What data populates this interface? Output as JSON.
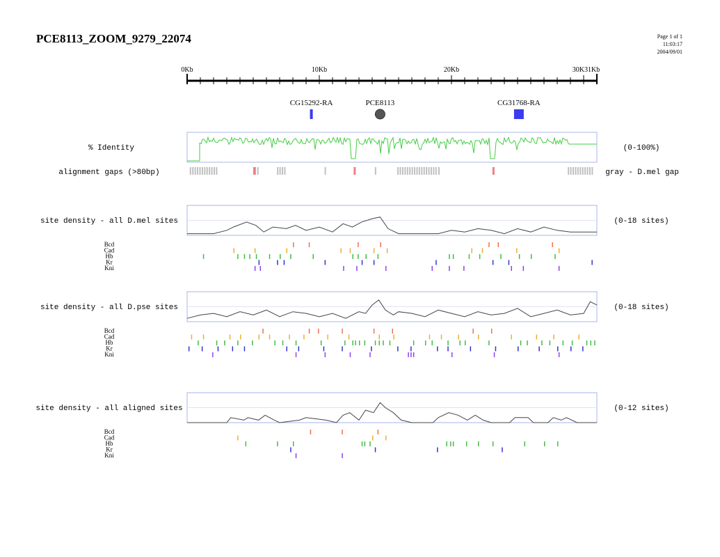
{
  "header": {
    "title": "PCE8113_ZOOM_9279_22074",
    "page": "Page 1 of 1",
    "time": "11:03:17",
    "date": "2004/09/01"
  },
  "ruler": {
    "max_kb": 31,
    "labels": [
      {
        "kb": 0,
        "text": "0Kb"
      },
      {
        "kb": 10,
        "text": "10Kb"
      },
      {
        "kb": 20,
        "text": "20Kb"
      },
      {
        "kb": 30,
        "text": "30K"
      },
      {
        "kb": 31,
        "text": "31Kb"
      }
    ]
  },
  "features": [
    {
      "label": "CG15292-RA",
      "kb": 9.4,
      "shape": "bar",
      "color": "#3b3bef"
    },
    {
      "label": "PCE8113",
      "kb": 14.6,
      "shape": "circle",
      "color": "#555555"
    },
    {
      "label": "CG31768-RA",
      "kb": 25.1,
      "shape": "square",
      "color": "#3b3bef"
    }
  ],
  "colors": {
    "identity": "#44cc44",
    "density": "#444444",
    "gray_gap": "#c0c0c0",
    "pink_gap": "#f08080",
    "Bcd": "#f07050",
    "Cad": "#e8b030",
    "Hb": "#44bb44",
    "Kr": "#3333cc",
    "Kni": "#8844ee",
    "frame": "#a8b4e8"
  },
  "identity": {
    "label": "% Identity",
    "range": "(0-100%)"
  },
  "gaps": {
    "label": "alignment gaps (>80bp)",
    "legend": "gray - D.mel gap",
    "gray": [
      [
        0.2,
        2.3
      ],
      [
        5.3,
        5.4
      ],
      [
        6.8,
        7.4
      ],
      [
        10.4,
        10.5
      ],
      [
        14.2,
        14.3
      ],
      [
        15.9,
        18.8
      ],
      [
        19.0,
        19.1
      ],
      [
        28.8,
        30.7
      ]
    ],
    "pink": [
      [
        5.0,
        5.2
      ],
      [
        12.6,
        12.7
      ],
      [
        23.1,
        23.2
      ]
    ]
  },
  "tracks": [
    {
      "label": "site density - all D.mel sites",
      "range": "(0-18 sites)",
      "max": 18,
      "series_names": [
        "Bcd",
        "Cad",
        "Hb",
        "Kr",
        "Kni"
      ],
      "chart_data": {
        "type": "line",
        "x_unit": "Kb",
        "ylim": [
          0,
          18
        ],
        "x": [
          0,
          2,
          3,
          3.5,
          4.5,
          5.2,
          5.8,
          6.5,
          7.5,
          8.2,
          9.0,
          10,
          11,
          11.8,
          12.5,
          13.2,
          14,
          14.6,
          15.2,
          16,
          17,
          19,
          20,
          21,
          22,
          23,
          24,
          25,
          26,
          27,
          28,
          29,
          30,
          31
        ],
        "y": [
          1,
          1,
          3,
          5,
          8,
          6,
          2,
          5,
          4,
          6,
          3,
          5,
          2,
          7,
          5,
          8,
          10,
          11,
          4,
          1,
          1,
          1,
          3,
          2,
          4,
          3,
          1,
          4,
          2,
          5,
          3,
          2,
          2,
          2
        ]
      },
      "sites": {
        "Bcd": [
          8.0,
          9.2,
          12.9,
          14.6,
          22.8,
          23.5,
          27.6
        ],
        "Cad": [
          3.5,
          5.1,
          7.5,
          11.6,
          12.3,
          14.1,
          15.1,
          21.5,
          22.3,
          24.9,
          28.1
        ],
        "Hb": [
          1.2,
          3.8,
          4.3,
          4.7,
          5.2,
          6.2,
          7.0,
          7.8,
          9.5,
          12.5,
          12.9,
          13.5,
          14.4,
          19.8,
          20.1,
          21.3,
          22.1,
          23.7,
          25.1,
          26.0,
          27.8
        ],
        "Kr": [
          5.4,
          6.8,
          7.3,
          10.4,
          13.2,
          14.1,
          18.8,
          23.1,
          24.3,
          30.6
        ],
        "Kni": [
          5.1,
          5.5,
          11.8,
          12.8,
          15.0,
          18.5,
          19.8,
          20.9,
          24.5,
          25.4,
          28.1
        ]
      }
    },
    {
      "label": "site density - all D.pse sites",
      "range": "(0-18 sites)",
      "max": 18,
      "series_names": [
        "Bcd",
        "Cad",
        "Hb",
        "Kr",
        "Kni"
      ],
      "chart_data": {
        "type": "line",
        "x_unit": "Kb",
        "ylim": [
          0,
          18
        ],
        "x": [
          0,
          1,
          2,
          3,
          4,
          5,
          6,
          7,
          8,
          9,
          10,
          11,
          12,
          13,
          13.5,
          14,
          14.5,
          15,
          15.6,
          16,
          17,
          18,
          19,
          20,
          21,
          22,
          23,
          24,
          25,
          26,
          27,
          28,
          29,
          30,
          30.5,
          31
        ],
        "y": [
          2,
          4,
          5,
          3,
          6,
          4,
          7,
          3,
          6,
          5,
          3,
          5,
          2,
          6,
          5,
          10,
          13,
          7,
          4,
          6,
          5,
          3,
          7,
          5,
          3,
          6,
          4,
          5,
          8,
          3,
          5,
          7,
          4,
          5,
          12,
          10
        ]
      },
      "sites": {
        "Bcd": [
          5.7,
          9.2,
          9.9,
          11.7,
          14.1,
          15.5,
          21.6,
          23.0
        ],
        "Cad": [
          0.3,
          1.2,
          3.2,
          4.0,
          5.4,
          6.2,
          7.7,
          8.8,
          10.6,
          12.2,
          14.5,
          15.6,
          18.3,
          19.2,
          20.5,
          22.0,
          24.5,
          26.4,
          27.7,
          29.6
        ],
        "Hb": [
          0.8,
          2.2,
          2.8,
          3.8,
          4.9,
          6.6,
          7.2,
          8.2,
          10.1,
          11.9,
          12.5,
          12.7,
          13.0,
          13.4,
          14.2,
          14.5,
          14.8,
          15.3,
          17.1,
          18.0,
          18.5,
          19.7,
          20.6,
          21.0,
          22.8,
          25.2,
          25.7,
          26.8,
          27.4,
          28.4,
          29.1,
          30.2,
          30.5,
          30.8
        ],
        "Kr": [
          0.1,
          1.1,
          2.3,
          3.4,
          4.3,
          7.5,
          8.4,
          10.3,
          11.7,
          13.9,
          15.9,
          16.9,
          18.9,
          19.7,
          21.4,
          23.3,
          25.0,
          26.6,
          28.0,
          29.0,
          29.9
        ],
        "Kni": [
          1.9,
          8.2,
          10.4,
          12.3,
          13.8,
          16.7,
          16.9,
          17.1,
          20.0,
          23.2,
          28.1
        ]
      }
    },
    {
      "label": "site density - all aligned sites",
      "range": "(0-12 sites)",
      "max": 12,
      "series_names": [
        "Bcd",
        "Cad",
        "Hb",
        "Kr",
        "Kni"
      ],
      "chart_data": {
        "type": "line",
        "x_unit": "Kb",
        "ylim": [
          0,
          12
        ],
        "x": [
          0,
          3,
          3.3,
          4.3,
          4.6,
          5.4,
          5.9,
          6.6,
          7.0,
          8.5,
          9.0,
          10.5,
          11.3,
          11.8,
          12.3,
          13.0,
          13.5,
          14.1,
          14.6,
          15.0,
          15.6,
          16.2,
          17,
          18.6,
          19.0,
          19.8,
          20.5,
          21.2,
          21.8,
          22.4,
          23,
          24.4,
          24.8,
          25.8,
          26.2,
          27.3,
          27.7,
          28.3,
          28.7,
          29.5,
          31
        ],
        "y": [
          0,
          0,
          2,
          1,
          2,
          1,
          3,
          1,
          0,
          1,
          2,
          1,
          0,
          3,
          4,
          1,
          5,
          4,
          8,
          6,
          4,
          1,
          0,
          0,
          2,
          4,
          3,
          1,
          3,
          1,
          0,
          0,
          2,
          2,
          0,
          0,
          2,
          1,
          2,
          0,
          0
        ]
      },
      "sites": {
        "Bcd": [
          9.3,
          11.7,
          14.4
        ],
        "Cad": [
          3.8,
          14.0,
          15.0
        ],
        "Hb": [
          4.4,
          6.8,
          8.0,
          13.2,
          13.4,
          13.8,
          19.6,
          19.9,
          20.1,
          21.1,
          22.0,
          23.1,
          25.5,
          27.0,
          28.0
        ],
        "Kr": [
          7.8,
          14.2,
          18.9,
          23.8
        ],
        "Kni": [
          8.2,
          11.7
        ]
      }
    }
  ]
}
